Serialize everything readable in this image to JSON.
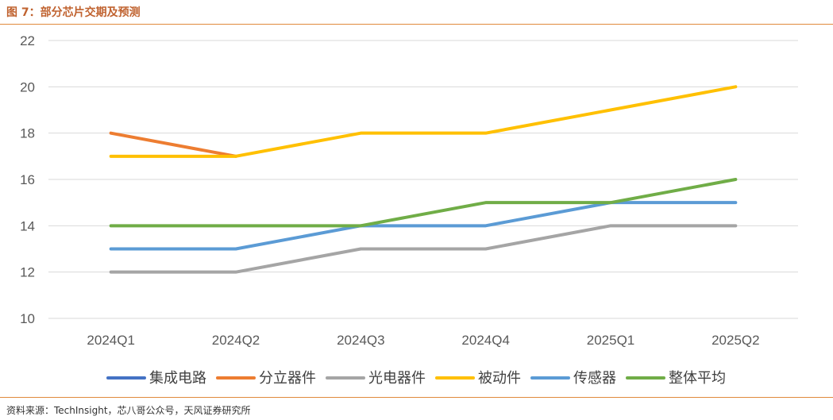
{
  "figure": {
    "title": "图 7：部分芯片交期及预测",
    "source": "资料来源：TechInsight，芯八哥公众号，天风证券研究所"
  },
  "chart_data": {
    "type": "line",
    "title": "部分芯片交期及预测",
    "xlabel": "",
    "ylabel": "",
    "categories": [
      "2024Q1",
      "2024Q2",
      "2024Q3",
      "2024Q4",
      "2025Q1",
      "2025Q2"
    ],
    "ylim": [
      10,
      22
    ],
    "yticks": [
      10,
      12,
      14,
      16,
      18,
      20,
      22
    ],
    "grid": true,
    "legend_position": "bottom",
    "series": [
      {
        "name": "集成电路",
        "color": "#4472c4",
        "values": [
          null,
          null,
          null,
          null,
          null,
          null
        ]
      },
      {
        "name": "分立器件",
        "color": "#ed7d31",
        "values": [
          18,
          17,
          null,
          null,
          null,
          null
        ]
      },
      {
        "name": "光电器件",
        "color": "#a5a5a5",
        "values": [
          12,
          12,
          13,
          13,
          14,
          14
        ]
      },
      {
        "name": "被动件",
        "color": "#ffc000",
        "values": [
          17,
          17,
          18,
          18,
          19,
          20
        ]
      },
      {
        "name": "传感器",
        "color": "#5b9bd5",
        "values": [
          13,
          13,
          14,
          14,
          15,
          15
        ]
      },
      {
        "name": "整体平均",
        "color": "#70ad47",
        "values": [
          14,
          14,
          14,
          15,
          15,
          16
        ]
      }
    ]
  }
}
